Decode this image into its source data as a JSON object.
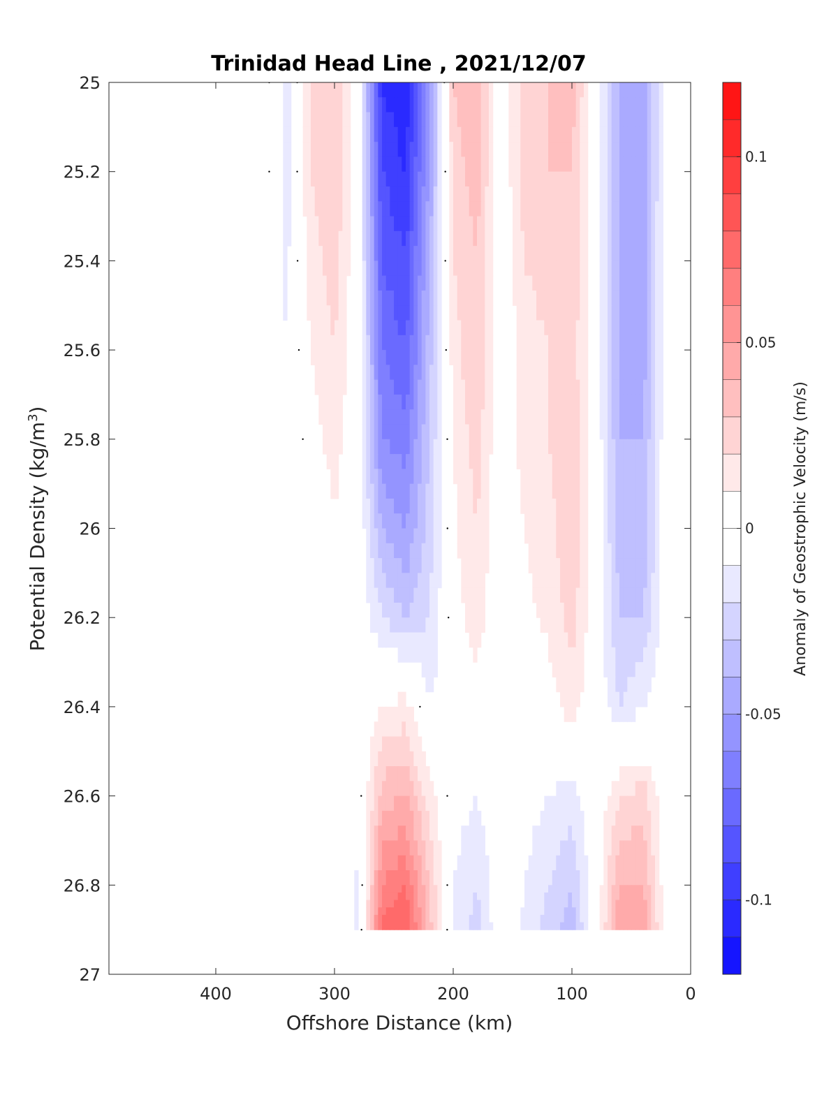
{
  "chart_data": {
    "type": "heatmap",
    "title": "Trinidad Head Line , 2021/12/07",
    "xlabel": "Offshore Distance (km)",
    "ylabel_main": "Potential Density (kg/m",
    "ylabel_sup": "3",
    "ylabel_close": ")",
    "colorbar_label": "Anomaly of Geostrophic Velocity (m/s)",
    "xlim": [
      490,
      0
    ],
    "ylim": [
      25,
      27
    ],
    "y_reversed": true,
    "x_ticks": [
      400,
      300,
      200,
      100,
      0
    ],
    "y_ticks": [
      25,
      25.2,
      25.4,
      25.6,
      25.8,
      26,
      26.2,
      26.4,
      26.6,
      26.8,
      27
    ],
    "colorbar": {
      "clim": [
        -0.12,
        0.12
      ],
      "ticks": [
        0.1,
        0.05,
        0,
        -0.05,
        -0.1
      ],
      "step": 0.01,
      "colormap": "blue-white-red"
    },
    "data_extent": {
      "x": [
        360,
        20
      ],
      "y": [
        25,
        26.9
      ]
    },
    "x": [
      360,
      340,
      320,
      300,
      280,
      260,
      240,
      220,
      200,
      180,
      160,
      140,
      120,
      100,
      80,
      60,
      40,
      20
    ],
    "y": [
      25.0,
      25.2,
      25.4,
      25.6,
      25.8,
      26.0,
      26.2,
      26.4,
      26.6,
      26.8,
      26.9
    ],
    "z": [
      [
        0.005,
        -0.015,
        0.02,
        0.03,
        0.0,
        -0.1,
        -0.11,
        -0.05,
        0.03,
        0.04,
        0.0,
        0.025,
        0.03,
        0.035,
        0.0,
        -0.04,
        -0.05,
        0.0
      ],
      [
        0.005,
        -0.015,
        0.02,
        0.03,
        0.0,
        -0.09,
        -0.1,
        -0.05,
        0.025,
        0.035,
        0.0,
        0.025,
        0.03,
        0.03,
        0.0,
        -0.04,
        -0.05,
        0.0
      ],
      [
        0.0,
        -0.012,
        0.015,
        0.025,
        0.0,
        -0.08,
        -0.09,
        -0.04,
        0.02,
        0.03,
        0.0,
        0.02,
        0.025,
        0.03,
        0.0,
        -0.04,
        -0.045,
        0.0
      ],
      [
        -0.005,
        -0.01,
        0.01,
        0.02,
        0.0,
        -0.07,
        -0.08,
        -0.035,
        0.015,
        0.03,
        0.0,
        0.015,
        0.02,
        0.025,
        0.0,
        -0.04,
        -0.045,
        0.0
      ],
      [
        -0.008,
        -0.01,
        0.005,
        0.015,
        0.0,
        -0.06,
        -0.065,
        -0.03,
        0.01,
        0.025,
        0.0,
        0.015,
        0.02,
        0.03,
        0.0,
        -0.04,
        -0.04,
        0.0
      ],
      [
        -0.008,
        -0.008,
        0.0,
        0.008,
        0.0,
        -0.04,
        -0.05,
        -0.025,
        0.008,
        0.02,
        0.0,
        0.01,
        0.015,
        0.03,
        0.0,
        -0.035,
        -0.04,
        0.0
      ],
      [
        -0.008,
        -0.005,
        0.0,
        0.0,
        0.0,
        -0.02,
        -0.03,
        -0.02,
        0.005,
        0.015,
        0.0,
        0.008,
        0.012,
        0.025,
        0.0,
        -0.03,
        -0.03,
        0.0
      ],
      [
        -0.008,
        -0.004,
        0.0,
        0.0,
        0.0,
        0.01,
        0.015,
        -0.01,
        0.0,
        0.005,
        0.0,
        0.0,
        0.005,
        0.015,
        0.0,
        -0.02,
        -0.01,
        0.0
      ],
      [
        -0.008,
        -0.004,
        0.0,
        0.0,
        -0.005,
        0.035,
        0.04,
        0.015,
        -0.005,
        -0.01,
        0.0,
        -0.005,
        -0.01,
        -0.015,
        0.0,
        0.02,
        0.025,
        0.0
      ],
      [
        -0.008,
        0.0,
        0.0,
        0.0,
        -0.012,
        0.06,
        0.07,
        0.03,
        -0.01,
        -0.02,
        0.0,
        -0.01,
        -0.02,
        -0.03,
        0.0,
        0.04,
        0.04,
        0.0
      ],
      [
        0.0,
        0.0,
        0.0,
        0.0,
        -0.012,
        0.075,
        0.08,
        0.035,
        -0.012,
        -0.025,
        0.0,
        -0.012,
        -0.025,
        -0.035,
        0.0,
        0.05,
        0.05,
        0.0
      ]
    ]
  }
}
